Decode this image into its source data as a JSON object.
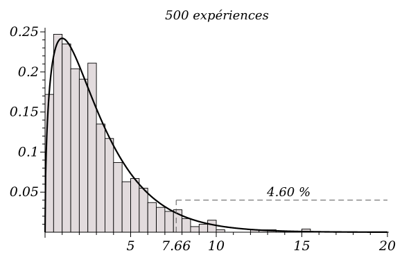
{
  "chart_data": {
    "type": "bar",
    "title": "500 expériences",
    "xlim": [
      0,
      20
    ],
    "ylim": [
      0,
      0.25
    ],
    "bin_width": 0.5,
    "bins": [
      {
        "x": 0.0,
        "value": 0.172
      },
      {
        "x": 0.5,
        "value": 0.247
      },
      {
        "x": 1.0,
        "value": 0.235
      },
      {
        "x": 1.5,
        "value": 0.204
      },
      {
        "x": 2.0,
        "value": 0.191
      },
      {
        "x": 2.5,
        "value": 0.211
      },
      {
        "x": 3.0,
        "value": 0.135
      },
      {
        "x": 3.5,
        "value": 0.117
      },
      {
        "x": 4.0,
        "value": 0.087
      },
      {
        "x": 4.5,
        "value": 0.063
      },
      {
        "x": 5.0,
        "value": 0.067
      },
      {
        "x": 5.5,
        "value": 0.055
      },
      {
        "x": 6.0,
        "value": 0.037
      },
      {
        "x": 6.5,
        "value": 0.031
      },
      {
        "x": 7.0,
        "value": 0.026
      },
      {
        "x": 7.5,
        "value": 0.028
      },
      {
        "x": 8.0,
        "value": 0.017
      },
      {
        "x": 8.5,
        "value": 0.007
      },
      {
        "x": 9.0,
        "value": 0.01
      },
      {
        "x": 9.5,
        "value": 0.015
      },
      {
        "x": 10.0,
        "value": 0.003
      },
      {
        "x": 12.0,
        "value": 0.003
      },
      {
        "x": 12.5,
        "value": 0.003
      },
      {
        "x": 13.0,
        "value": 0.003
      },
      {
        "x": 15.0,
        "value": 0.004
      }
    ],
    "curve": {
      "type": "chi-squared density",
      "df": 3
    },
    "x_ticks": [
      {
        "value": 5,
        "label": "5"
      },
      {
        "value": 7.66,
        "label": "7.66"
      },
      {
        "value": 10,
        "label": "10"
      },
      {
        "value": 15,
        "label": "15"
      },
      {
        "value": 20,
        "label": "20"
      }
    ],
    "y_ticks": [
      {
        "value": 0.05,
        "label": "0.05"
      },
      {
        "value": 0.1,
        "label": "0.1"
      },
      {
        "value": 0.15,
        "label": "0.15"
      },
      {
        "value": 0.2,
        "label": "0.2"
      },
      {
        "value": 0.25,
        "label": "0.25"
      }
    ],
    "threshold": {
      "x": 7.66,
      "level": 0.04,
      "label": "4.60 %"
    },
    "grid": false
  }
}
